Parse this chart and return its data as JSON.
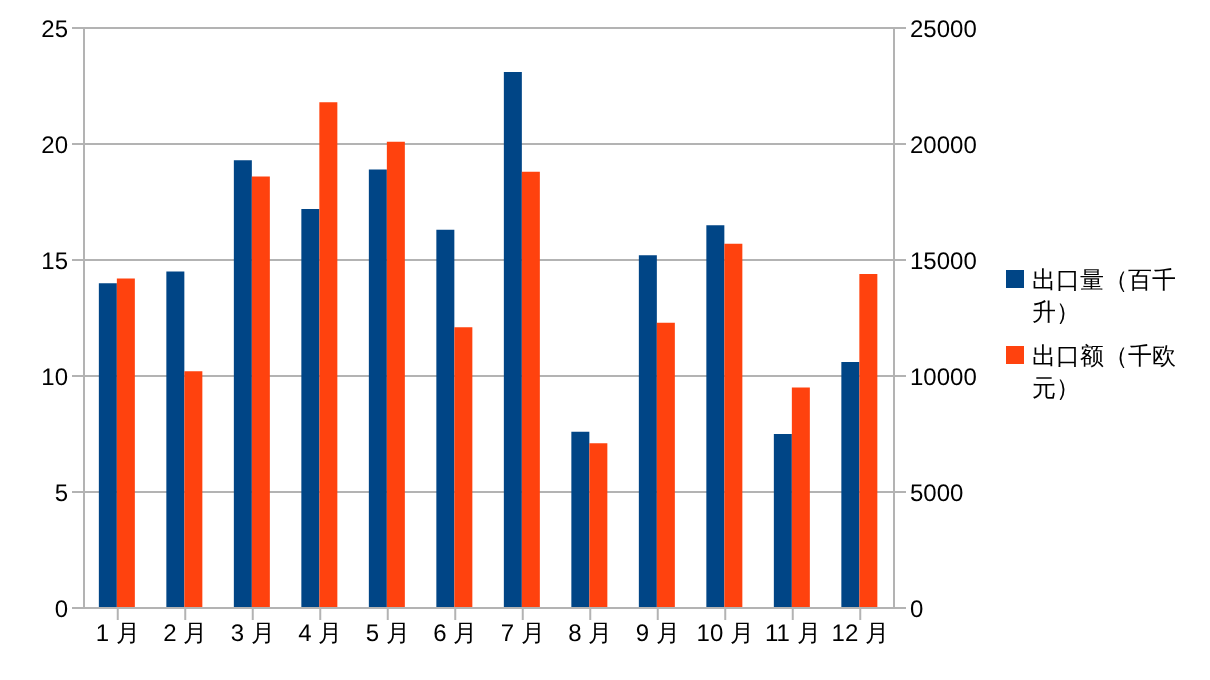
{
  "chart_data": {
    "type": "bar",
    "categories": [
      "1 月",
      "2 月",
      "3 月",
      "4 月",
      "5 月",
      "6 月",
      "7 月",
      "8 月",
      "9 月",
      "10 月",
      "11 月",
      "12 月"
    ],
    "series": [
      {
        "name": "出口量（百千升）",
        "color": "#004586",
        "values": [
          14.0,
          14.5,
          19.3,
          17.2,
          18.9,
          16.3,
          23.1,
          7.6,
          15.2,
          16.5,
          7.5,
          10.6
        ]
      },
      {
        "name": "出口额（千欧元）",
        "color": "#ff420e",
        "axis": "y2",
        "values": [
          14200,
          10200,
          18600,
          21800,
          20100,
          12100,
          18800,
          7100,
          12300,
          15700,
          9500,
          14400
        ]
      }
    ],
    "ylim": [
      0,
      25
    ],
    "yticks": [
      0,
      5,
      10,
      15,
      20,
      25
    ],
    "y2lim": [
      0,
      25000
    ],
    "y2ticks": [
      0,
      5000,
      10000,
      15000,
      20000,
      25000
    ],
    "grid": "y",
    "legend": "right"
  }
}
